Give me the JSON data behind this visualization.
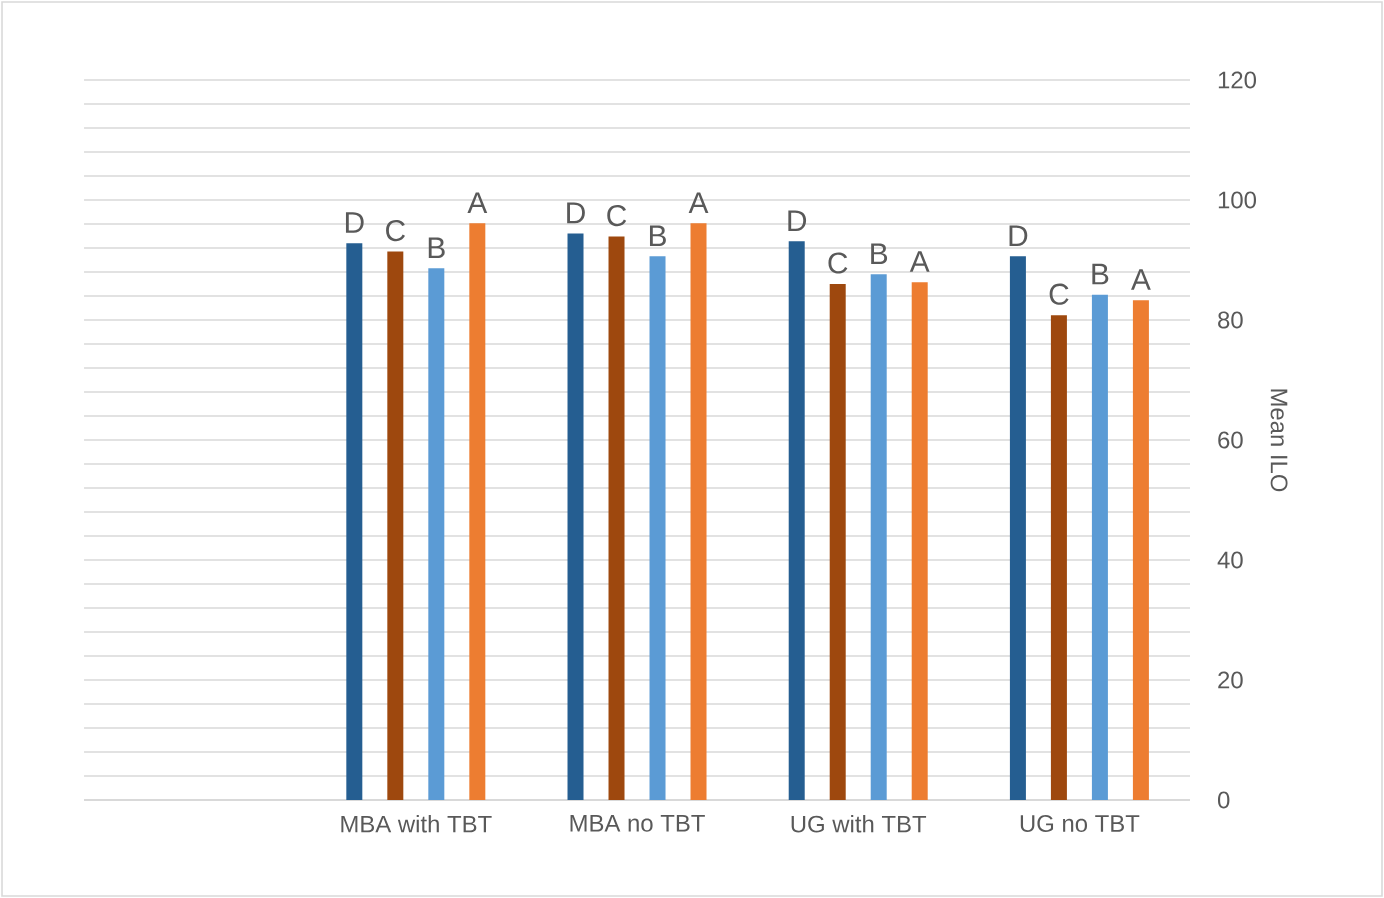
{
  "chart_data": {
    "type": "bar",
    "ylabel": "Mean ILO",
    "categories": [
      null,
      "MBA with TBT",
      "MBA no TBT",
      "UG with TBT",
      "UG no TBT"
    ],
    "series": [
      {
        "color": "#255e91",
        "values": [
          null,
          92.8,
          94.4,
          93.1,
          90.6
        ],
        "value_labels": [
          null,
          "D",
          "D",
          "D",
          "D"
        ]
      },
      {
        "color": "#9e480e",
        "values": [
          null,
          91.4,
          93.9,
          86,
          80.8
        ],
        "value_labels": [
          null,
          "C",
          "C",
          "C",
          "C"
        ]
      },
      {
        "color": "#5b9bd5",
        "values": [
          null,
          88.6,
          90.6,
          87.6,
          84.2
        ],
        "value_labels": [
          null,
          "B",
          "B",
          "B",
          "B"
        ]
      },
      {
        "color": "#ed7d31",
        "values": [
          null,
          96.1,
          96.1,
          86.3,
          83.3
        ],
        "value_labels": [
          null,
          "A",
          "A",
          "A",
          "A"
        ]
      }
    ],
    "ylim": [
      0,
      120
    ],
    "yticks": [
      0,
      {
        "value": 4,
        "label": null
      },
      {
        "value": 8,
        "label": null
      },
      {
        "value": 12,
        "label": null
      },
      {
        "value": 16,
        "label": null
      },
      20,
      {
        "value": 24,
        "label": null
      },
      {
        "value": 28,
        "label": null
      },
      {
        "value": 32,
        "label": null
      },
      {
        "value": 36,
        "label": null
      },
      40,
      {
        "value": 44,
        "label": null
      },
      {
        "value": 48,
        "label": null
      },
      {
        "value": 52,
        "label": null
      },
      {
        "value": 56,
        "label": null
      },
      60,
      {
        "value": 64,
        "label": null
      },
      {
        "value": 68,
        "label": null
      },
      {
        "value": 72,
        "label": null
      },
      {
        "value": 76,
        "label": null
      },
      80,
      {
        "value": 84,
        "label": null
      },
      {
        "value": 88,
        "label": null
      },
      {
        "value": 92,
        "label": null
      },
      {
        "value": 96,
        "label": null
      },
      100,
      {
        "value": 104,
        "label": null
      },
      {
        "value": 108,
        "label": null
      },
      {
        "value": 112,
        "label": null
      },
      {
        "value": 116,
        "label": null
      },
      120
    ],
    "grid": "y"
  }
}
